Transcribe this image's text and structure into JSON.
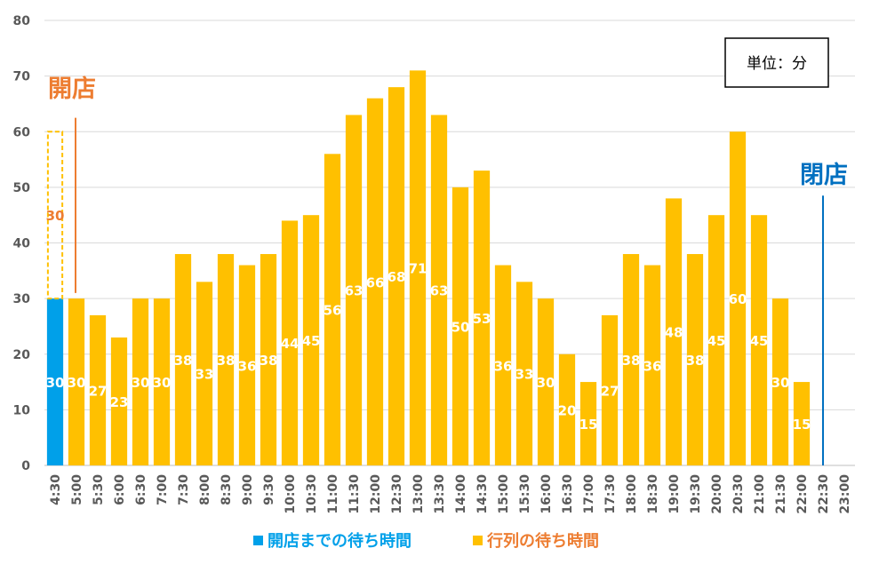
{
  "chart_data": {
    "type": "bar",
    "categories": [
      "4:30",
      "5:00",
      "5:30",
      "6:00",
      "6:30",
      "7:00",
      "7:30",
      "8:00",
      "8:30",
      "9:00",
      "9:30",
      "10:00",
      "10:30",
      "11:00",
      "11:30",
      "12:00",
      "12:30",
      "13:00",
      "13:30",
      "14:00",
      "14:30",
      "15:00",
      "15:30",
      "16:00",
      "16:30",
      "17:00",
      "17:30",
      "18:00",
      "18:30",
      "19:00",
      "19:30",
      "20:00",
      "20:30",
      "21:00",
      "21:30",
      "22:00",
      "22:30",
      "23:00"
    ],
    "series": [
      {
        "name": "開店までの待ち時間",
        "color": "#00A0E9",
        "values": [
          30,
          null,
          null,
          null,
          null,
          null,
          null,
          null,
          null,
          null,
          null,
          null,
          null,
          null,
          null,
          null,
          null,
          null,
          null,
          null,
          null,
          null,
          null,
          null,
          null,
          null,
          null,
          null,
          null,
          null,
          null,
          null,
          null,
          null,
          null,
          null,
          null,
          null
        ]
      },
      {
        "name": "行列の待ち時間",
        "color": "#FFC000",
        "values": [
          null,
          30,
          27,
          23,
          30,
          30,
          38,
          33,
          38,
          36,
          38,
          44,
          45,
          56,
          63,
          66,
          68,
          71,
          63,
          50,
          53,
          36,
          33,
          30,
          20,
          15,
          27,
          38,
          36,
          48,
          38,
          45,
          60,
          45,
          30,
          15,
          null,
          null
        ]
      }
    ],
    "ghost_bar": {
      "category": "4:30",
      "base": 30,
      "value": 30,
      "label": "30",
      "color": "#FFC000",
      "label_color": "#ED7D31"
    },
    "ylim": [
      0,
      80
    ],
    "yticks": [
      0,
      10,
      20,
      30,
      40,
      50,
      60,
      70,
      80
    ],
    "grid": true,
    "legend_position": "bottom",
    "unit_box": "単位：分",
    "annotations": [
      {
        "text": "開店",
        "color": "#ED7D31",
        "category": "5:00"
      },
      {
        "text": "閉店",
        "color": "#0070C0",
        "category": "22:30"
      }
    ]
  }
}
